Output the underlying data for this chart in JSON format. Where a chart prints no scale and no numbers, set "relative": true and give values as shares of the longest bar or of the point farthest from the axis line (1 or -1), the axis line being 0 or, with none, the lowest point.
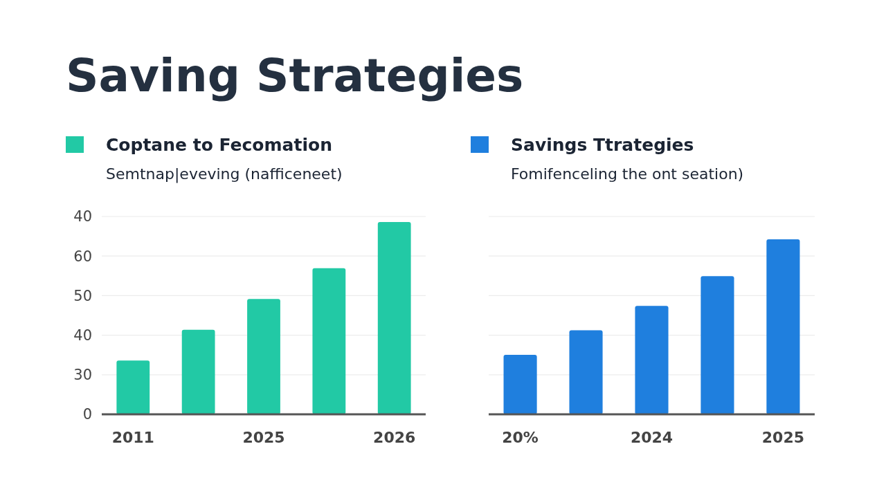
{
  "chart_data": [
    {
      "type": "bar",
      "title": "Saving Strategies",
      "subtitle": "Semtnap|eveving (nafficeneet)",
      "legend": "top left",
      "grid": "y",
      "relative": true,
      "categories": [
        "2011",
        null,
        "2025",
        null,
        "2026"
      ],
      "series": [
        {
          "name": "Coptane to Fecomation",
          "color": "#22c9a5",
          "values": [
            0.28,
            0.44,
            0.6,
            0.76,
            1
          ]
        }
      ],
      "annotations": [
        "0",
        "30",
        "40",
        "50",
        "60",
        "40"
      ]
    },
    {
      "type": "bar",
      "subtitle": "Fomifenceling the ont seation)",
      "legend": "top left",
      "grid": "y",
      "relative": true,
      "categories": [
        "20%",
        null,
        "2024",
        null,
        "2025"
      ],
      "series": [
        {
          "name": "Savings Ttrategies",
          "color": "#1f7fde",
          "values": [
            0.34,
            0.48,
            0.62,
            0.79,
            1
          ]
        }
      ]
    }
  ]
}
